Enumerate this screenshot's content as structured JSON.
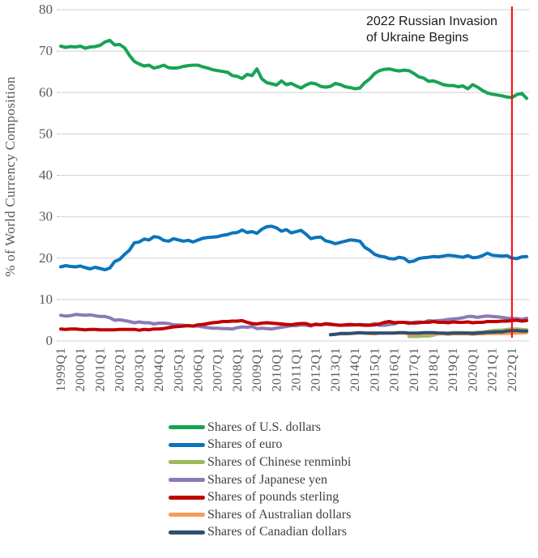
{
  "y_axis_title": "% of World Currency Composition",
  "annotation": {
    "lines": [
      "2022 Russian Invasion",
      "of Ukraine Begins"
    ],
    "color": "#1a1a1a"
  },
  "event_line": {
    "label": "2022Q1",
    "index": 92,
    "color": "#ff0000"
  },
  "style_colors": {
    "gridline": "#d9d9d9",
    "tick": "#bfbfbf",
    "axis_text": "#595959"
  },
  "chart_data": {
    "type": "line",
    "title": "",
    "xlabel": "",
    "ylabel": "% of World Currency Composition",
    "ylim": [
      0,
      80
    ],
    "y_tick_step": 10,
    "grid": true,
    "legend_position": "bottom-left",
    "frequency": "quarterly",
    "x_start": "1999Q1",
    "x_end": "2022Q4",
    "x_tick_every": 4,
    "x_tick_labels": [
      "1999Q1",
      "2000Q1",
      "2001Q1",
      "2002Q1",
      "2003Q1",
      "2004Q1",
      "2005Q1",
      "2006Q1",
      "2007Q1",
      "2008Q1",
      "2009Q1",
      "2010Q1",
      "2011Q1",
      "2012Q1",
      "2013Q1",
      "2014Q1",
      "2015Q1",
      "2016Q1",
      "2017Q1",
      "2018Q1",
      "2019Q1",
      "2020Q1",
      "2021Q1",
      "2022Q1"
    ],
    "annotation_text": "2022 Russian Invasion of Ukraine Begins",
    "event_line_at": "2022Q1",
    "series": [
      {
        "name": "Shares of U.S. dollars",
        "color": "#17a356",
        "values": [
          71.2,
          70.9,
          71.1,
          71.0,
          71.2,
          70.7,
          71.0,
          71.1,
          71.4,
          72.2,
          72.6,
          71.5,
          71.6,
          70.8,
          69.0,
          67.5,
          66.9,
          66.4,
          66.6,
          65.9,
          66.2,
          66.6,
          66.0,
          65.9,
          66.0,
          66.3,
          66.5,
          66.6,
          66.6,
          66.2,
          65.9,
          65.5,
          65.3,
          65.1,
          64.9,
          64.1,
          63.9,
          63.4,
          64.4,
          64.1,
          65.7,
          63.3,
          62.4,
          62.1,
          61.8,
          62.8,
          61.9,
          62.2,
          61.6,
          61.1,
          61.8,
          62.3,
          62.1,
          61.5,
          61.3,
          61.5,
          62.2,
          61.9,
          61.4,
          61.2,
          60.9,
          61.1,
          62.4,
          63.3,
          64.6,
          65.3,
          65.6,
          65.7,
          65.4,
          65.2,
          65.4,
          65.3,
          64.6,
          63.8,
          63.5,
          62.7,
          62.8,
          62.4,
          61.9,
          61.7,
          61.7,
          61.4,
          61.6,
          60.9,
          61.9,
          61.3,
          60.5,
          59.9,
          59.6,
          59.4,
          59.2,
          58.9,
          58.8,
          59.5,
          59.8,
          58.6
        ]
      },
      {
        "name": "Shares of euro",
        "color": "#0c74bc",
        "values": [
          17.9,
          18.2,
          18.0,
          17.9,
          18.1,
          17.7,
          17.4,
          17.8,
          17.5,
          17.2,
          17.6,
          19.2,
          19.7,
          20.9,
          21.9,
          23.7,
          23.9,
          24.6,
          24.4,
          25.2,
          25.0,
          24.3,
          24.1,
          24.7,
          24.4,
          24.1,
          24.3,
          23.9,
          24.4,
          24.8,
          25.0,
          25.1,
          25.2,
          25.5,
          25.7,
          26.1,
          26.2,
          26.8,
          26.2,
          26.4,
          26.0,
          27.0,
          27.6,
          27.7,
          27.3,
          26.5,
          26.9,
          26.1,
          26.4,
          26.7,
          25.8,
          24.7,
          25.0,
          25.1,
          24.2,
          23.9,
          23.5,
          23.8,
          24.1,
          24.4,
          24.3,
          24.1,
          22.6,
          21.9,
          20.9,
          20.5,
          20.3,
          19.9,
          19.8,
          20.2,
          20.0,
          19.1,
          19.3,
          19.9,
          20.1,
          20.2,
          20.4,
          20.3,
          20.5,
          20.7,
          20.6,
          20.4,
          20.2,
          20.6,
          20.1,
          20.2,
          20.6,
          21.2,
          20.7,
          20.6,
          20.5,
          20.6,
          20.0,
          19.9,
          20.3,
          20.4
        ]
      },
      {
        "name": "Shares of Chinese renminbi",
        "color": "#9db95c",
        "values": [
          null,
          null,
          null,
          null,
          null,
          null,
          null,
          null,
          null,
          null,
          null,
          null,
          null,
          null,
          null,
          null,
          null,
          null,
          null,
          null,
          null,
          null,
          null,
          null,
          null,
          null,
          null,
          null,
          null,
          null,
          null,
          null,
          null,
          null,
          null,
          null,
          null,
          null,
          null,
          null,
          null,
          null,
          null,
          null,
          null,
          null,
          null,
          null,
          null,
          null,
          null,
          null,
          null,
          null,
          null,
          null,
          null,
          null,
          null,
          null,
          null,
          null,
          null,
          null,
          null,
          null,
          null,
          null,
          null,
          null,
          null,
          1.1,
          1.1,
          1.1,
          1.2,
          1.2,
          1.4,
          1.8,
          1.8,
          1.9,
          2.0,
          2.0,
          2.0,
          1.9,
          2.0,
          2.1,
          2.1,
          2.3,
          2.5,
          2.6,
          2.6,
          2.8,
          2.9,
          2.9,
          2.8,
          2.7
        ]
      },
      {
        "name": "Shares of Japanese yen",
        "color": "#8a7ab6",
        "values": [
          6.2,
          6.0,
          6.1,
          6.4,
          6.3,
          6.2,
          6.3,
          6.1,
          5.9,
          5.9,
          5.6,
          5.0,
          5.1,
          4.9,
          4.7,
          4.4,
          4.6,
          4.4,
          4.4,
          4.1,
          4.3,
          4.3,
          4.2,
          3.9,
          3.9,
          3.8,
          3.7,
          3.6,
          3.6,
          3.4,
          3.2,
          3.1,
          3.1,
          3.0,
          3.0,
          2.9,
          3.2,
          3.4,
          3.3,
          3.5,
          3.0,
          3.1,
          3.0,
          2.9,
          3.1,
          3.3,
          3.5,
          3.7,
          3.7,
          3.9,
          3.8,
          3.6,
          4.1,
          3.9,
          4.2,
          4.1,
          3.9,
          3.8,
          3.8,
          3.8,
          3.9,
          4.0,
          3.9,
          3.9,
          4.2,
          3.8,
          3.8,
          4.0,
          4.1,
          4.5,
          4.5,
          4.2,
          4.5,
          4.6,
          4.5,
          4.9,
          4.8,
          4.9,
          5.0,
          5.2,
          5.3,
          5.4,
          5.6,
          5.9,
          5.9,
          5.7,
          5.9,
          6.0,
          5.9,
          5.8,
          5.7,
          5.5,
          5.4,
          5.4,
          5.2,
          5.5
        ]
      },
      {
        "name": "Shares of pounds sterling",
        "color": "#c00000",
        "values": [
          2.9,
          2.8,
          2.9,
          2.9,
          2.8,
          2.7,
          2.8,
          2.8,
          2.7,
          2.7,
          2.7,
          2.7,
          2.8,
          2.8,
          2.8,
          2.8,
          2.6,
          2.8,
          2.7,
          2.9,
          2.9,
          3.0,
          3.2,
          3.4,
          3.5,
          3.6,
          3.7,
          3.6,
          3.9,
          4.0,
          4.2,
          4.4,
          4.5,
          4.7,
          4.7,
          4.8,
          4.8,
          4.9,
          4.5,
          4.2,
          4.1,
          4.3,
          4.4,
          4.3,
          4.2,
          4.1,
          4.0,
          3.9,
          4.1,
          4.2,
          4.2,
          3.8,
          4.0,
          3.9,
          4.1,
          4.0,
          3.9,
          3.8,
          3.9,
          4.0,
          3.9,
          3.9,
          3.8,
          3.8,
          3.9,
          4.1,
          4.5,
          4.7,
          4.4,
          4.5,
          4.5,
          4.4,
          4.3,
          4.4,
          4.5,
          4.5,
          4.7,
          4.5,
          4.5,
          4.4,
          4.6,
          4.5,
          4.5,
          4.6,
          4.4,
          4.5,
          4.5,
          4.7,
          4.7,
          4.7,
          4.8,
          4.8,
          4.9,
          5.0,
          4.8,
          4.9
        ]
      },
      {
        "name": "Shares of Australian dollars",
        "color": "#f79a55",
        "values": [
          null,
          null,
          null,
          null,
          null,
          null,
          null,
          null,
          null,
          null,
          null,
          null,
          null,
          null,
          null,
          null,
          null,
          null,
          null,
          null,
          null,
          null,
          null,
          null,
          null,
          null,
          null,
          null,
          null,
          null,
          null,
          null,
          null,
          null,
          null,
          null,
          null,
          null,
          null,
          null,
          null,
          null,
          null,
          null,
          null,
          null,
          null,
          null,
          null,
          null,
          null,
          null,
          null,
          null,
          null,
          1.5,
          1.6,
          1.7,
          1.7,
          1.8,
          1.9,
          1.9,
          1.9,
          1.8,
          1.7,
          1.9,
          1.9,
          1.9,
          1.9,
          1.9,
          1.9,
          1.7,
          1.7,
          1.8,
          1.8,
          1.8,
          1.8,
          1.7,
          1.7,
          1.6,
          1.7,
          1.7,
          1.7,
          1.7,
          1.6,
          1.7,
          1.7,
          1.8,
          1.8,
          1.8,
          1.8,
          1.8,
          1.9,
          1.9,
          1.9,
          2.0
        ]
      },
      {
        "name": "Shares of Canadian dollars",
        "color": "#2e4e74",
        "values": [
          null,
          null,
          null,
          null,
          null,
          null,
          null,
          null,
          null,
          null,
          null,
          null,
          null,
          null,
          null,
          null,
          null,
          null,
          null,
          null,
          null,
          null,
          null,
          null,
          null,
          null,
          null,
          null,
          null,
          null,
          null,
          null,
          null,
          null,
          null,
          null,
          null,
          null,
          null,
          null,
          null,
          null,
          null,
          null,
          null,
          null,
          null,
          null,
          null,
          null,
          null,
          null,
          null,
          null,
          null,
          1.5,
          1.6,
          1.8,
          1.8,
          1.8,
          1.9,
          2.0,
          1.9,
          1.9,
          1.9,
          1.9,
          1.9,
          1.9,
          1.9,
          2.0,
          2.0,
          1.9,
          1.9,
          1.9,
          2.0,
          2.0,
          2.0,
          1.9,
          1.9,
          1.8,
          1.9,
          1.9,
          1.9,
          1.9,
          1.8,
          1.9,
          2.0,
          2.1,
          2.1,
          2.2,
          2.2,
          2.4,
          2.5,
          2.5,
          2.4,
          2.4
        ]
      }
    ]
  }
}
